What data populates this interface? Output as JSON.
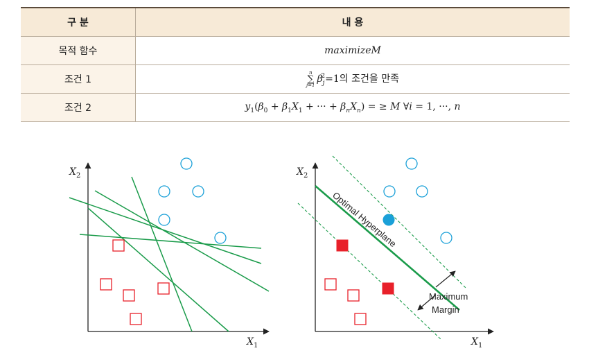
{
  "table": {
    "headers": [
      "구 분",
      "내 용"
    ],
    "rows": [
      {
        "label": "목적 함수",
        "content": "maximizeM"
      },
      {
        "label": "조건 1",
        "content": "∑ β_j² = 1의 조건을 만족",
        "sum_top": "n",
        "sum_bottom": "j=1",
        "tail": "의 조건을 만족"
      },
      {
        "label": "조건 2",
        "content": "y_i(β₀ + β₁X₁ + ··· + β_nX_n) = ≥ M ∀i = 1, ···, n"
      }
    ]
  },
  "left_plot": {
    "x_axis_label": "X₁",
    "y_axis_label": "X₂",
    "circles": 5,
    "squares": 5,
    "line_color": "#1a9b4a"
  },
  "right_plot": {
    "x_axis_label": "X₁",
    "y_axis_label": "X₂",
    "hyperplane_label": "Optimal Hyperplane",
    "margin_label_1": "Maximum",
    "margin_label_2": "Margin",
    "circle_color": "#1aa0d8",
    "square_color": "#e8202a",
    "line_color": "#1a9b4a"
  }
}
